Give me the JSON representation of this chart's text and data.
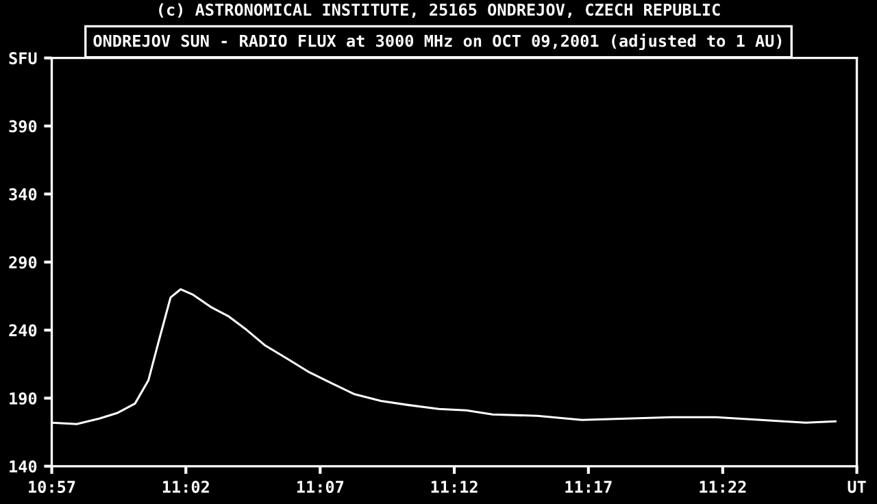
{
  "chart_data": {
    "type": "line",
    "title": "ONDREJOV SUN - RADIO FLUX at 3000 MHz on OCT 09,2001 (adjusted to 1 AU)",
    "annotations": [
      "(c) ASTRONOMICAL INSTITUTE, 25165 ONDREJOV, CZECH REPUBLIC"
    ],
    "series": [
      {
        "color": "#ffffff",
        "x": [
          10.95,
          10.9655,
          10.9795,
          10.9905,
          11.0017,
          11.01,
          11.0167,
          11.0238,
          11.03,
          11.0378,
          11.0488,
          11.06,
          11.0712,
          11.0822,
          11.0962,
          11.11,
          11.1238,
          11.1378,
          11.1545,
          11.1712,
          11.1905,
          11.2075,
          11.2238,
          11.2517,
          11.2792,
          11.3072,
          11.335,
          11.3625,
          11.3905,
          11.4042,
          11.4183,
          11.4367
        ],
        "values": [
          172,
          171,
          175,
          179,
          186,
          203,
          233,
          264,
          270,
          266,
          257,
          250,
          240,
          229,
          219,
          209,
          201,
          193,
          188,
          185,
          182,
          181,
          178,
          177,
          174,
          175,
          176,
          176,
          174,
          173,
          172,
          173
        ]
      }
    ],
    "xlim": [
      10.95,
      11.45
    ],
    "xticks": [
      {
        "value": 10.95,
        "label": "10:57"
      },
      {
        "value": 11.0333,
        "label": "11:02"
      },
      {
        "value": 11.1167,
        "label": "11:07"
      },
      {
        "value": 11.2,
        "label": "11:12"
      },
      {
        "value": 11.2833,
        "label": "11:17"
      },
      {
        "value": 11.3667,
        "label": "11:22"
      },
      {
        "value": 11.45,
        "label": "UT"
      }
    ],
    "ylim": [
      140,
      440
    ],
    "yticks": [
      140,
      190,
      240,
      290,
      340,
      390,
      {
        "value": 440,
        "label": "SFU"
      }
    ],
    "grid": false,
    "legend": false,
    "marker": "none",
    "line_style": "solid"
  }
}
